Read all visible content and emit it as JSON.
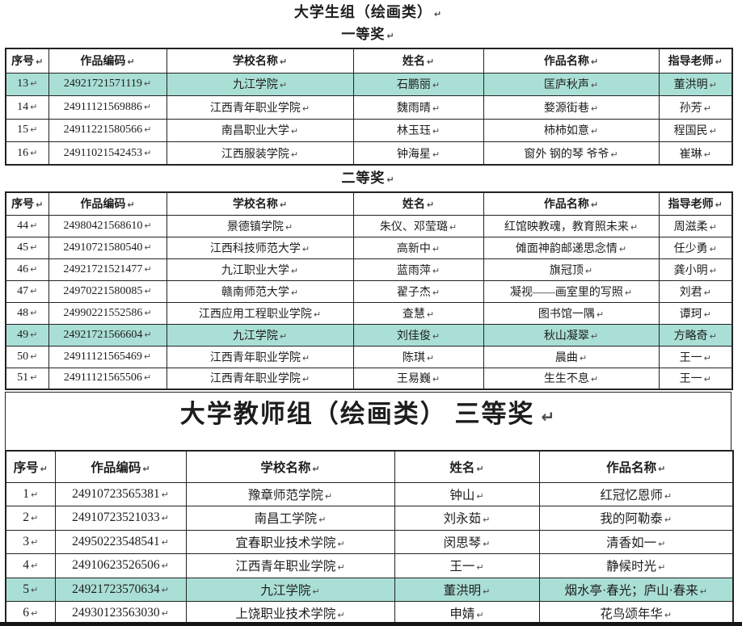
{
  "marks": {
    "return_mark": "↵"
  },
  "theme": {
    "highlight_color": "#aadfd6",
    "border_color": "#222222",
    "text_color": "#1d1d1d"
  },
  "student_group": {
    "title": "大学生组（绘画类）",
    "first_prize": {
      "title": "一等奖",
      "columns": [
        "序号",
        "作品编码",
        "学校名称",
        "姓名",
        "作品名称",
        "指导老师"
      ],
      "col_keys": [
        "no",
        "code",
        "school",
        "name",
        "work",
        "teacher"
      ],
      "rows": [
        {
          "highlight": true,
          "cells": [
            "13",
            "24921721571119",
            "九江学院",
            "石鹏丽",
            "匡庐秋声",
            "董洪明"
          ]
        },
        {
          "highlight": false,
          "cells": [
            "14",
            "24911121569886",
            "江西青年职业学院",
            "魏雨晴",
            "婺源街巷",
            "孙芳"
          ]
        },
        {
          "highlight": false,
          "cells": [
            "15",
            "24911221580566",
            "南昌职业大学",
            "林玉珏",
            "柿柿如意",
            "程国民"
          ]
        },
        {
          "highlight": false,
          "cells": [
            "16",
            "24911021542453",
            "江西服装学院",
            "钟海星",
            "窗外 钢的琴 爷爷",
            "崔琳"
          ]
        }
      ]
    },
    "second_prize": {
      "title": "二等奖",
      "columns": [
        "序号",
        "作品编码",
        "学校名称",
        "姓名",
        "作品名称",
        "指导老师"
      ],
      "col_keys": [
        "no",
        "code",
        "school",
        "name",
        "work",
        "teacher"
      ],
      "rows": [
        {
          "highlight": false,
          "cells": [
            "44",
            "24980421568610",
            "景德镇学院",
            "朱仪、邓莹璐",
            "红馆映教魂，教育照未来",
            "周滋柔"
          ]
        },
        {
          "highlight": false,
          "cells": [
            "45",
            "24910721580540",
            "江西科技师范大学",
            "高新中",
            "傩面神韵邮递思念情",
            "任少勇"
          ]
        },
        {
          "highlight": false,
          "cells": [
            "46",
            "24921721521477",
            "九江职业大学",
            "蓝雨萍",
            "旗冠顶",
            "龚小明"
          ]
        },
        {
          "highlight": false,
          "cells": [
            "47",
            "24970221580085",
            "赣南师范大学",
            "翟子杰",
            "凝视——画室里的写照",
            "刘君"
          ]
        },
        {
          "highlight": false,
          "cells": [
            "48",
            "24990221552586",
            "江西应用工程职业学院",
            "查慧",
            "图书馆一隅",
            "谭珂"
          ]
        },
        {
          "highlight": true,
          "cells": [
            "49",
            "24921721566604",
            "九江学院",
            "刘佳俊",
            "秋山凝翠",
            "方略奇"
          ]
        },
        {
          "highlight": false,
          "cells": [
            "50",
            "24911121565469",
            "江西青年职业学院",
            "陈琪",
            "晨曲",
            "王一"
          ]
        },
        {
          "highlight": false,
          "cells": [
            "51",
            "24911121565506",
            "江西青年职业学院",
            "王易巍",
            "生生不息",
            "王一"
          ]
        }
      ]
    }
  },
  "teacher_group": {
    "title": "大学教师组（绘画类） 三等奖",
    "third_prize": {
      "columns": [
        "序号",
        "作品编码",
        "学校名称",
        "姓名",
        "作品名称"
      ],
      "col_keys": [
        "no",
        "code",
        "school",
        "name",
        "work"
      ],
      "rows": [
        {
          "highlight": false,
          "cells": [
            "1",
            "24910723565381",
            "豫章师范学院",
            "钟山",
            "红冠忆恩师"
          ]
        },
        {
          "highlight": false,
          "cells": [
            "2",
            "24910723521033",
            "南昌工学院",
            "刘永茹",
            "我的阿勒泰"
          ]
        },
        {
          "highlight": false,
          "cells": [
            "3",
            "24950223548541",
            "宜春职业技术学院",
            "闵思琴",
            "清香如一"
          ]
        },
        {
          "highlight": false,
          "cells": [
            "4",
            "24910623526506",
            "江西青年职业学院",
            "王一",
            "静候时光"
          ]
        },
        {
          "highlight": true,
          "cells": [
            "5",
            "24921723570634",
            "九江学院",
            "董洪明",
            "烟水亭·春光；庐山·春来"
          ]
        },
        {
          "highlight": false,
          "cells": [
            "6",
            "24930123563030",
            "上饶职业技术学院",
            "申婧",
            "花鸟颂年华"
          ]
        }
      ]
    }
  }
}
